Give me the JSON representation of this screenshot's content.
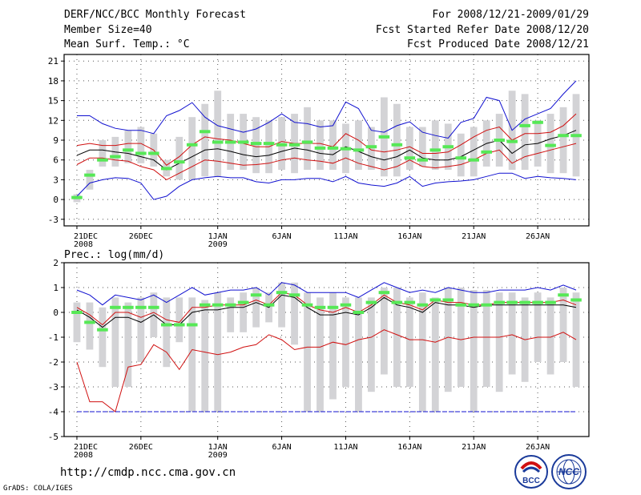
{
  "header": {
    "title": "DERF/NCC/BCC Monthly Forecast",
    "member_size": "Member Size=40",
    "variable": "Mean Surf. Temp.: °C",
    "forecast_period": "For 2008/12/21-2009/01/29",
    "started_refer": "Fcst Started Refer Date 2008/12/20",
    "produced": "Fcst Produced Date 2008/12/21"
  },
  "footer": {
    "url": "http://cmdp.ncc.cma.gov.cn",
    "credit": "GrADS: COLA/IGES",
    "logo_bcc": "BCC",
    "logo_ncc": "NCC"
  },
  "colors": {
    "box": "#d3d3d6",
    "mean_bar": "#56e856",
    "max_min_line": "#1010d0",
    "pct_line": "#d01010",
    "median_line": "#000000",
    "grid": "#555555"
  },
  "chart_data": [
    {
      "type": "line",
      "title": "Mean Surf. Temp.: °C",
      "xlabel": "",
      "ylabel": "",
      "x_tick_labels": [
        "21DEC\n2008",
        "26DEC",
        "1JAN\n2009",
        "6JAN",
        "11JAN",
        "16JAN",
        "21JAN",
        "26JAN"
      ],
      "x_tick_days": [
        1,
        6,
        12,
        17,
        22,
        27,
        32,
        37
      ],
      "xlim": [
        0,
        41
      ],
      "ylim": [
        -4,
        22
      ],
      "y_ticks": [
        -3,
        0,
        3,
        6,
        9,
        12,
        15,
        18,
        21
      ],
      "days": 40,
      "box_low": [
        -0.4,
        1.5,
        5.0,
        5.0,
        5.5,
        5.5,
        5.0,
        3.5,
        3.0,
        3.0,
        3.5,
        3.5,
        4.5,
        4.5,
        4.0,
        4.0,
        4.5,
        4.0,
        4.5,
        4.5,
        4.5,
        4.0,
        4.5,
        4.5,
        3.5,
        3.5,
        4.5,
        5.0,
        4.5,
        4.5,
        3.5,
        3.5,
        5.0,
        5.0,
        4.5,
        4.5,
        5.0,
        4.0,
        4.0,
        3.5
      ],
      "box_high": [
        0.8,
        4.5,
        9.0,
        9.5,
        10.5,
        11.0,
        10.0,
        6.0,
        9.5,
        12.5,
        14.5,
        16.5,
        13.0,
        13.0,
        12.5,
        12.0,
        12.5,
        13.0,
        14.0,
        12.0,
        12.0,
        11.5,
        12.0,
        11.0,
        15.5,
        14.5,
        11.0,
        11.0,
        12.0,
        11.5,
        10.0,
        11.0,
        12.0,
        13.0,
        16.5,
        16.0,
        12.0,
        13.0,
        14.0,
        16.0
      ],
      "series": [
        {
          "name": "ensemble mean",
          "style": "bar",
          "values": [
            0.3,
            3.7,
            6.0,
            6.5,
            7.5,
            7.0,
            7.0,
            4.7,
            5.7,
            8.3,
            10.3,
            8.7,
            8.7,
            8.7,
            8.5,
            8.5,
            8.3,
            8.3,
            8.7,
            7.8,
            7.8,
            7.7,
            7.5,
            8.0,
            9.5,
            8.3,
            6.3,
            6.0,
            7.5,
            8.0,
            6.3,
            6.0,
            7.2,
            9.0,
            8.8,
            11.2,
            11.7,
            8.2,
            9.7,
            9.7
          ]
        },
        {
          "name": "maximum",
          "style": "line",
          "color": "#1010d0",
          "values": [
            12.7,
            12.7,
            11.5,
            10.8,
            10.5,
            10.5,
            10.0,
            12.7,
            13.5,
            14.7,
            12.5,
            11.2,
            10.7,
            10.2,
            10.7,
            11.7,
            13.0,
            11.7,
            11.5,
            11.0,
            11.2,
            14.8,
            13.8,
            10.5,
            10.2,
            11.2,
            11.8,
            10.2,
            9.7,
            9.3,
            11.7,
            12.3,
            15.5,
            15.0,
            10.5,
            12.2,
            13.0,
            13.8,
            16.0,
            18.0
          ]
        },
        {
          "name": "upper percentile",
          "style": "line",
          "color": "#d01010",
          "values": [
            8.2,
            8.5,
            8.2,
            8.2,
            8.5,
            8.5,
            7.5,
            5.2,
            6.5,
            8.3,
            9.5,
            9.2,
            9.0,
            8.5,
            8.0,
            8.0,
            8.8,
            8.5,
            8.5,
            8.5,
            8.0,
            10.0,
            9.0,
            7.5,
            7.2,
            7.5,
            8.0,
            7.0,
            7.0,
            7.2,
            8.3,
            9.5,
            10.5,
            11.0,
            9.0,
            10.0,
            10.0,
            10.2,
            11.2,
            13.0
          ]
        },
        {
          "name": "median",
          "style": "line",
          "color": "#000000",
          "values": [
            6.7,
            7.5,
            7.5,
            7.2,
            7.0,
            6.5,
            6.0,
            4.5,
            5.5,
            6.5,
            7.5,
            7.7,
            7.3,
            6.8,
            6.5,
            6.7,
            7.3,
            7.8,
            7.5,
            7.0,
            6.8,
            8.0,
            7.3,
            6.5,
            6.0,
            6.5,
            7.5,
            6.3,
            6.0,
            6.0,
            6.5,
            7.5,
            8.5,
            9.0,
            7.0,
            8.3,
            8.5,
            9.2,
            9.7,
            10.5
          ]
        },
        {
          "name": "lower percentile",
          "style": "line",
          "color": "#d01010",
          "values": [
            5.3,
            6.3,
            6.3,
            6.0,
            5.8,
            5.0,
            4.5,
            3.0,
            4.0,
            5.0,
            6.0,
            5.8,
            5.5,
            5.2,
            5.3,
            5.5,
            6.0,
            6.3,
            6.0,
            5.8,
            5.5,
            6.3,
            5.5,
            5.0,
            4.5,
            5.0,
            6.0,
            5.0,
            4.8,
            5.0,
            5.3,
            6.0,
            7.0,
            7.5,
            5.5,
            6.5,
            7.0,
            7.5,
            8.0,
            8.5
          ]
        },
        {
          "name": "minimum",
          "style": "line",
          "color": "#1010d0",
          "values": [
            0.5,
            2.5,
            3.0,
            3.3,
            3.2,
            2.5,
            0.0,
            0.5,
            2.0,
            3.0,
            3.3,
            3.5,
            3.3,
            3.3,
            2.7,
            2.5,
            3.0,
            3.0,
            3.2,
            3.2,
            2.7,
            3.5,
            2.5,
            2.2,
            2.0,
            2.5,
            3.5,
            2.0,
            2.5,
            2.7,
            2.8,
            3.0,
            3.5,
            4.0,
            4.0,
            3.2,
            3.5,
            3.3,
            3.2,
            3.0
          ]
        }
      ]
    },
    {
      "type": "line",
      "title": "Prec.: log(mm/d)",
      "xlabel": "",
      "ylabel": "",
      "x_tick_labels": [
        "21DEC\n2008",
        "26DEC",
        "1JAN\n2009",
        "6JAN",
        "11JAN",
        "16JAN",
        "21JAN",
        "26JAN"
      ],
      "x_tick_days": [
        1,
        6,
        12,
        17,
        22,
        27,
        32,
        37
      ],
      "xlim": [
        0,
        41
      ],
      "ylim": [
        -5,
        2
      ],
      "y_ticks": [
        -5,
        -4,
        -3,
        -2,
        -1,
        0,
        1,
        2
      ],
      "days": 40,
      "box_low": [
        -1.2,
        -1.5,
        -2.2,
        -3.0,
        -3.0,
        -2.0,
        -1.0,
        -2.2,
        -1.2,
        -4.0,
        -4.0,
        -4.0,
        -0.8,
        -0.8,
        -0.6,
        -0.4,
        -0.6,
        -1.3,
        -4.0,
        -4.0,
        -3.5,
        -3.0,
        -4.0,
        -3.2,
        -2.5,
        -3.0,
        -3.0,
        -4.0,
        -4.0,
        -3.2,
        -3.0,
        -4.0,
        -3.0,
        -3.2,
        -2.5,
        -2.8,
        -2.0,
        -2.5,
        -2.0,
        -3.0
      ],
      "box_high": [
        0.4,
        0.4,
        0.2,
        0.6,
        0.4,
        0.6,
        0.8,
        0.6,
        0.6,
        0.6,
        0.5,
        0.8,
        0.6,
        0.8,
        1.0,
        0.8,
        1.2,
        1.2,
        0.8,
        0.6,
        0.8,
        0.6,
        0.6,
        0.6,
        1.0,
        1.0,
        0.6,
        0.8,
        0.6,
        1.0,
        1.0,
        0.9,
        0.9,
        0.8,
        0.8,
        0.6,
        0.8,
        0.6,
        1.0,
        0.8
      ],
      "series": [
        {
          "name": "ensemble mean",
          "style": "bar",
          "values": [
            0.0,
            -0.4,
            -0.7,
            0.2,
            0.2,
            0.2,
            0.2,
            -0.5,
            -0.5,
            -0.5,
            0.3,
            0.3,
            0.3,
            0.4,
            0.7,
            0.3,
            0.8,
            0.7,
            0.3,
            0.2,
            0.2,
            0.3,
            0.0,
            0.4,
            0.8,
            0.4,
            0.4,
            0.3,
            0.5,
            0.5,
            0.3,
            0.3,
            0.3,
            0.4,
            0.4,
            0.4,
            0.4,
            0.4,
            0.7,
            0.5
          ]
        },
        {
          "name": "maximum",
          "style": "line",
          "color": "#1010d0",
          "values": [
            0.9,
            0.7,
            0.3,
            0.7,
            0.6,
            0.5,
            0.7,
            0.4,
            0.7,
            1.0,
            0.7,
            0.8,
            0.9,
            0.9,
            1.0,
            0.7,
            1.2,
            1.1,
            0.8,
            0.8,
            0.8,
            0.8,
            0.6,
            0.9,
            1.2,
            1.0,
            0.8,
            0.9,
            0.8,
            1.0,
            0.9,
            0.8,
            0.8,
            0.9,
            0.9,
            0.9,
            1.0,
            0.9,
            1.1,
            0.9
          ]
        },
        {
          "name": "upper percentile",
          "style": "line",
          "color": "#d01010",
          "values": [
            0.2,
            -0.1,
            -0.5,
            0.0,
            0.0,
            -0.2,
            0.0,
            -0.3,
            -0.4,
            0.2,
            0.2,
            0.3,
            0.3,
            0.3,
            0.5,
            0.3,
            0.8,
            0.7,
            0.3,
            0.1,
            0.0,
            0.2,
            0.0,
            0.3,
            0.7,
            0.4,
            0.3,
            0.1,
            0.5,
            0.4,
            0.4,
            0.3,
            0.3,
            0.4,
            0.4,
            0.4,
            0.4,
            0.4,
            0.5,
            0.3
          ]
        },
        {
          "name": "median",
          "style": "line",
          "color": "#000000",
          "values": [
            0.1,
            -0.2,
            -0.6,
            -0.2,
            -0.2,
            -0.4,
            -0.1,
            -0.5,
            -0.5,
            0.0,
            0.1,
            0.1,
            0.2,
            0.2,
            0.4,
            0.2,
            0.7,
            0.6,
            0.2,
            -0.1,
            -0.1,
            0.0,
            -0.1,
            0.2,
            0.6,
            0.3,
            0.2,
            0.0,
            0.4,
            0.3,
            0.3,
            0.2,
            0.3,
            0.3,
            0.3,
            0.3,
            0.3,
            0.3,
            0.3,
            0.2
          ]
        },
        {
          "name": "lower percentile",
          "style": "line",
          "color": "#d01010",
          "values": [
            -2.0,
            -3.6,
            -3.6,
            -4.0,
            -2.2,
            -2.1,
            -1.3,
            -1.6,
            -2.3,
            -1.5,
            -1.6,
            -1.7,
            -1.6,
            -1.4,
            -1.3,
            -0.9,
            -1.1,
            -1.5,
            -1.4,
            -1.4,
            -1.2,
            -1.3,
            -1.1,
            -1.0,
            -0.7,
            -0.9,
            -1.1,
            -1.1,
            -1.2,
            -1.0,
            -1.1,
            -1.0,
            -1.0,
            -1.0,
            -0.9,
            -1.1,
            -1.0,
            -1.0,
            -0.8,
            -1.1
          ]
        },
        {
          "name": "minimum",
          "style": "line",
          "color": "#1010d0",
          "values": [
            -4.0,
            -4.0,
            -4.0,
            -4.0,
            -4.0,
            -4.0,
            -4.0,
            -4.0,
            -4.0,
            -4.0,
            -4.0,
            -4.0,
            -4.0,
            -4.0,
            -4.0,
            -4.0,
            -4.0,
            -4.0,
            -4.0,
            -4.0,
            -4.0,
            -4.0,
            -4.0,
            -4.0,
            -4.0,
            -4.0,
            -4.0,
            -4.0,
            -4.0,
            -4.0,
            -4.0,
            -4.0,
            -4.0,
            -4.0,
            -4.0,
            -4.0,
            -4.0,
            -4.0,
            -4.0,
            -4.0
          ]
        }
      ]
    }
  ]
}
